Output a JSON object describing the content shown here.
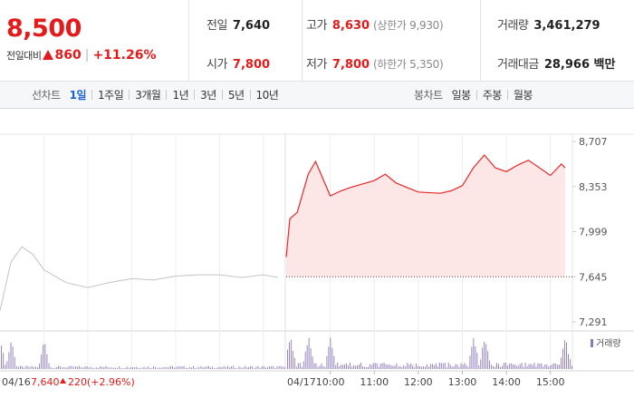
{
  "quote": {
    "price": "8,500",
    "change_label": "전일대비",
    "change_value": "860",
    "change_pct": "+11.26%",
    "prev_close_label": "전일",
    "prev_close": "7,640",
    "open_label": "시가",
    "open": "7,800",
    "high_label": "고가",
    "high": "8,630",
    "upper_limit": "(상한가 9,930)",
    "low_label": "저가",
    "low": "7,800",
    "lower_limit": "(하한가 5,350)",
    "volume_label": "거래량",
    "volume": "3,461,279",
    "amount_label": "거래대금",
    "amount": "28,966 백만"
  },
  "toolbar": {
    "line_title": "선차트",
    "line_periods": [
      "1일",
      "1주일",
      "3개월",
      "1년",
      "3년",
      "5년",
      "10년"
    ],
    "active_period": "1일",
    "candle_title": "봉차트",
    "candle_periods": [
      "일봉",
      "주봉",
      "월봉"
    ]
  },
  "colors": {
    "up": "#e41b1b",
    "active_tab": "#1c64d4",
    "today_line": "#e8262a",
    "today_fill": "#fde6e6",
    "prev_line": "#c4c4c4",
    "volume_bar": "#8e79b8"
  },
  "chart_data": {
    "type": "line",
    "y_ticks": [
      "8,707",
      "8,353",
      "7,999",
      "7,645",
      "7,291"
    ],
    "y_range": [
      7291,
      8707
    ],
    "reference_price": 7645,
    "x_labels": [
      "04/16",
      "04/17",
      "10:00",
      "11:00",
      "12:00",
      "13:00",
      "14:00",
      "15:00"
    ],
    "prev_day_footer": {
      "close": "7,640",
      "change": "220",
      "pct": "(+2.96%)"
    },
    "volume_legend": "거래량",
    "series": [
      {
        "day": "04/16",
        "x": [
          "09:00",
          "09:15",
          "09:30",
          "09:45",
          "10:00",
          "10:30",
          "11:00",
          "11:30",
          "12:00",
          "12:30",
          "13:00",
          "13:30",
          "14:00",
          "14:30",
          "15:00",
          "15:20"
        ],
        "y": [
          7380,
          7760,
          7880,
          7820,
          7700,
          7600,
          7560,
          7600,
          7630,
          7620,
          7650,
          7660,
          7660,
          7640,
          7660,
          7640
        ]
      },
      {
        "day": "04/17",
        "x": [
          "09:00",
          "09:05",
          "09:15",
          "09:30",
          "09:40",
          "10:00",
          "10:15",
          "10:30",
          "11:00",
          "11:15",
          "11:30",
          "12:00",
          "12:30",
          "12:45",
          "13:00",
          "13:15",
          "13:30",
          "13:45",
          "14:00",
          "14:15",
          "14:30",
          "15:00",
          "15:15",
          "15:20"
        ],
        "y": [
          7800,
          8100,
          8150,
          8450,
          8550,
          8280,
          8320,
          8350,
          8400,
          8450,
          8380,
          8310,
          8300,
          8320,
          8360,
          8500,
          8600,
          8500,
          8470,
          8520,
          8560,
          8440,
          8530,
          8500
        ]
      }
    ],
    "volume": {
      "prev_day_peak_times": [
        "09:00",
        "09:15",
        "10:00"
      ],
      "today_peak_times": [
        "09:05",
        "09:30",
        "10:00",
        "13:15",
        "13:30",
        "15:20"
      ]
    }
  }
}
